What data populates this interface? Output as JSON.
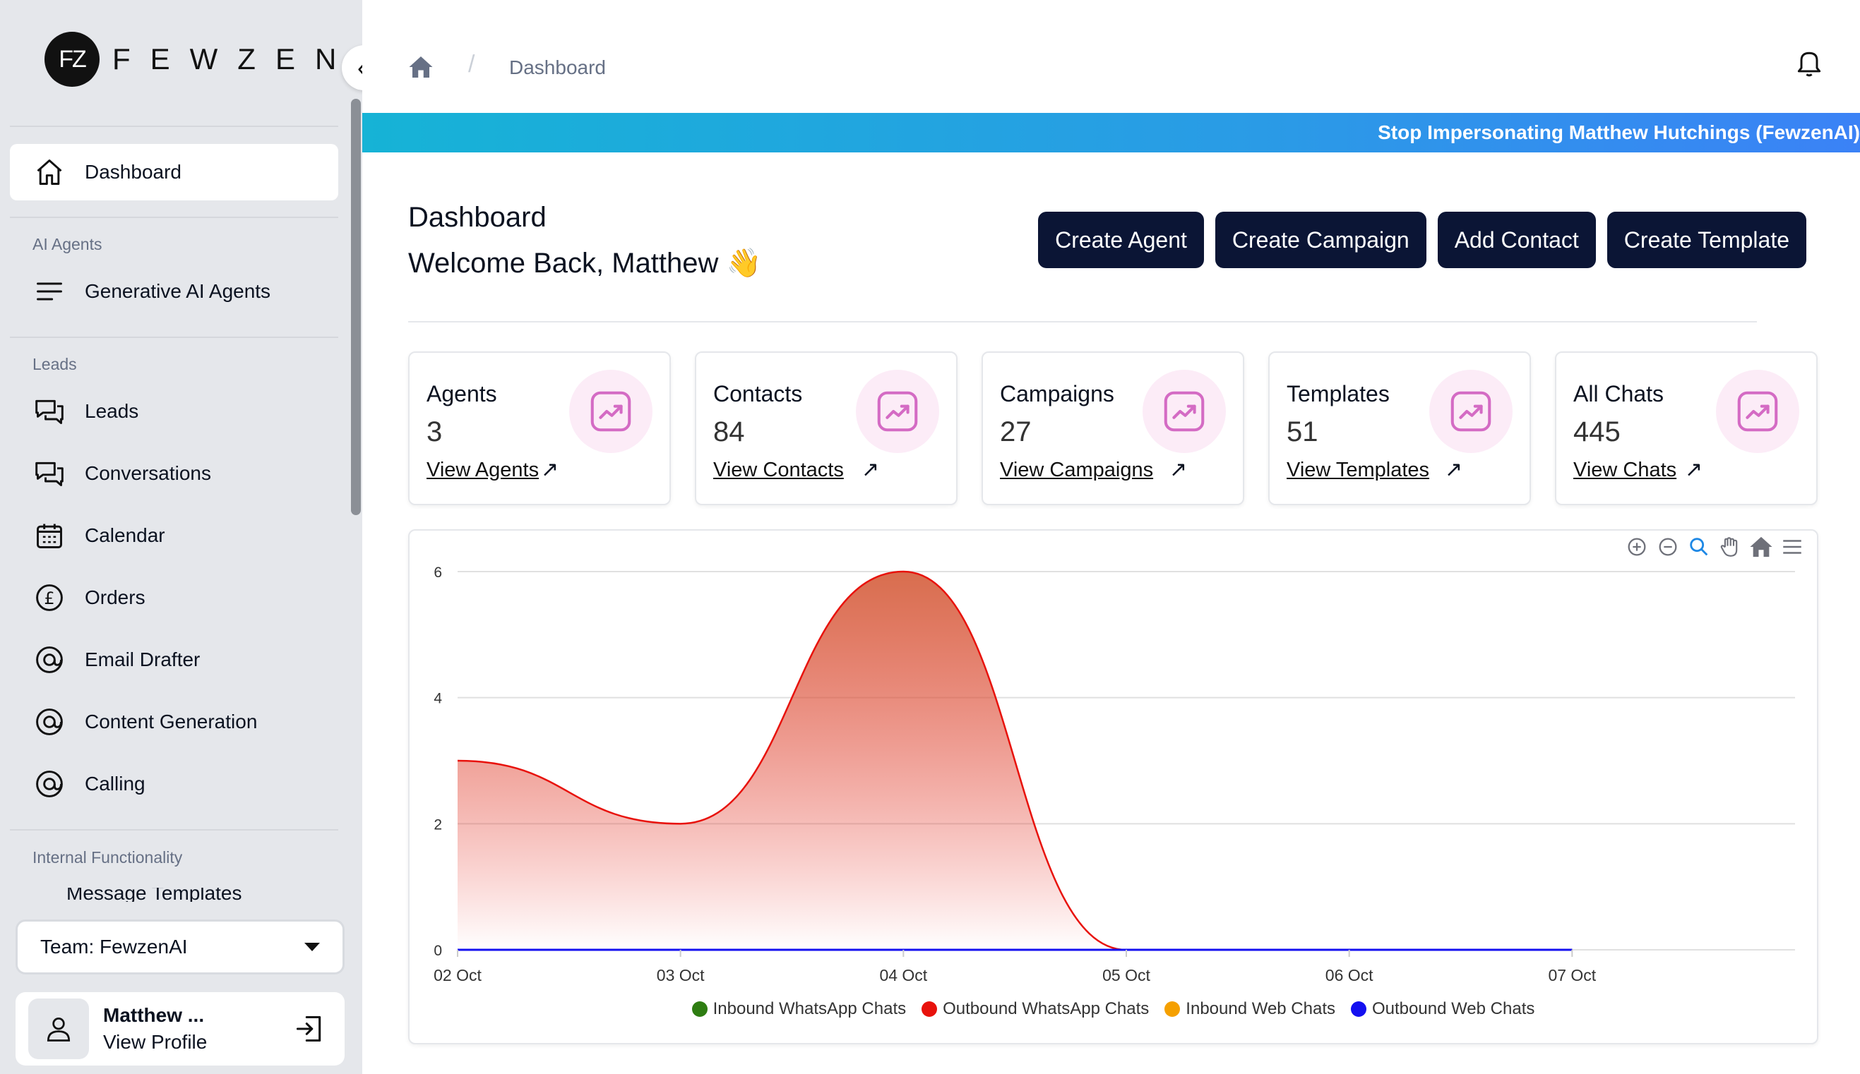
{
  "brand": {
    "logo_mark": "FZ",
    "name": "FEWZEN"
  },
  "sidebar": {
    "dashboard": "Dashboard",
    "sections": {
      "ai_agents": "AI Agents",
      "leads": "Leads",
      "internal": "Internal Functionality"
    },
    "items": {
      "generative_ai_agents": "Generative AI Agents",
      "leads": "Leads",
      "conversations": "Conversations",
      "calendar": "Calendar",
      "orders": "Orders",
      "email_drafter": "Email Drafter",
      "content_generation": "Content Generation",
      "calling": "Calling",
      "message_templates": "Message Templates"
    },
    "team": "Team: FewzenAI",
    "profile": {
      "name": "Matthew ...",
      "link": "View Profile"
    }
  },
  "topbar": {
    "breadcrumb": "Dashboard",
    "separator": "/"
  },
  "banner": "Stop Impersonating Matthew Hutchings (FewzenAI)",
  "main": {
    "title": "Dashboard",
    "welcome": "Welcome Back, Matthew 👋",
    "actions": {
      "create_agent": "Create Agent",
      "create_campaign": "Create Campaign",
      "add_contact": "Add Contact",
      "create_template": "Create Template"
    },
    "cards": [
      {
        "label": "Agents",
        "value": "3",
        "link": "View Agents"
      },
      {
        "label": "Contacts",
        "value": "84",
        "link": "View Contacts"
      },
      {
        "label": "Campaigns",
        "value": "27",
        "link": "View Campaigns"
      },
      {
        "label": "Templates",
        "value": "51",
        "link": "View Templates"
      },
      {
        "label": "All Chats",
        "value": "445",
        "link": "View Chats"
      }
    ],
    "arrow": "↗"
  },
  "chart_data": {
    "type": "area",
    "x": [
      "02 Oct",
      "03 Oct",
      "04 Oct",
      "05 Oct",
      "06 Oct",
      "07 Oct"
    ],
    "y_ticks": [
      "0",
      "2",
      "4",
      "6"
    ],
    "ylim": [
      0,
      6
    ],
    "grid": true,
    "legend_position": "bottom",
    "series": [
      {
        "name": "Inbound WhatsApp Chats",
        "color": "#2e7d12",
        "values": [
          0,
          0,
          0,
          0,
          0,
          0
        ]
      },
      {
        "name": "Outbound WhatsApp Chats",
        "color": "#e8120c",
        "values": [
          3,
          2,
          6,
          0,
          0,
          0
        ]
      },
      {
        "name": "Inbound Web Chats",
        "color": "#f5a000",
        "values": [
          0,
          0,
          0,
          0,
          0,
          0
        ]
      },
      {
        "name": "Outbound Web Chats",
        "color": "#1410f0",
        "values": [
          0,
          0,
          0,
          0,
          0,
          0
        ]
      }
    ]
  }
}
